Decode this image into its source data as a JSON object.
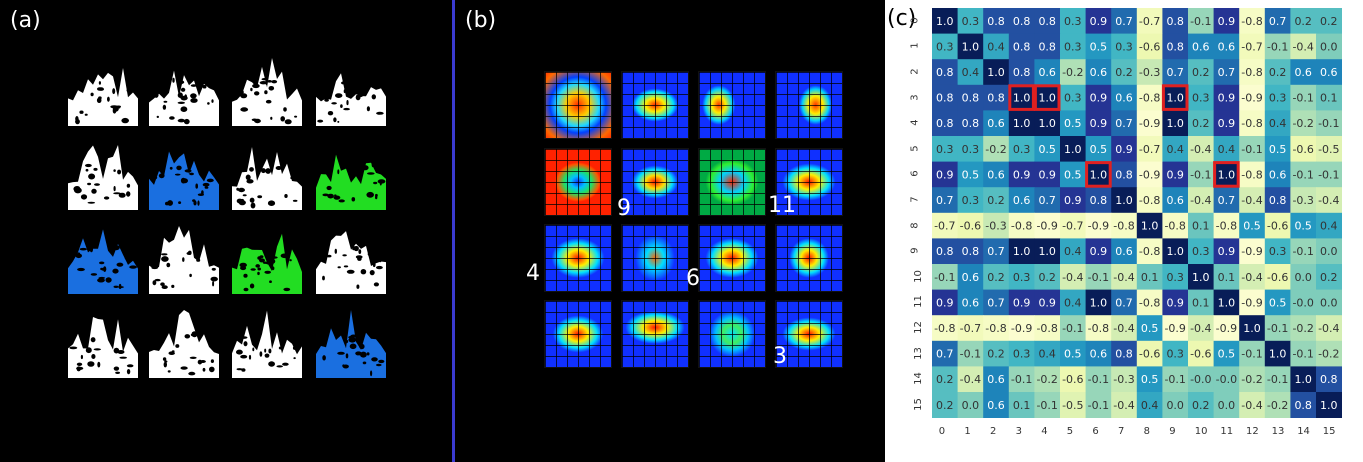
{
  "panels": {
    "a": {
      "label": "(a)"
    },
    "b": {
      "label": "(b)"
    },
    "c": {
      "label": "(c)"
    }
  },
  "feature_map_numbers": [
    {
      "text": "9"
    },
    {
      "text": "11"
    },
    {
      "text": "4"
    },
    {
      "text": "6"
    },
    {
      "text": "3"
    }
  ],
  "silhouette_colors": [
    [
      "#ffffff",
      "#ffffff",
      "#ffffff",
      "#ffffff"
    ],
    [
      "#ffffff",
      "#1a6fe0",
      "#ffffff",
      "#22dd22"
    ],
    [
      "#1a6fe0",
      "#ffffff",
      "#22dd22",
      "#ffffff"
    ],
    [
      "#ffffff",
      "#ffffff",
      "#ffffff",
      "#1a6fe0"
    ]
  ],
  "chart_data": {
    "type": "heatmap",
    "x_ticks": [
      "0",
      "1",
      "2",
      "3",
      "4",
      "5",
      "6",
      "7",
      "8",
      "9",
      "10",
      "11",
      "12",
      "13",
      "14",
      "15"
    ],
    "y_ticks": [
      "0",
      "1",
      "2",
      "3",
      "4",
      "5",
      "6",
      "7",
      "8",
      "9",
      "10",
      "11",
      "12",
      "13",
      "14",
      "15"
    ],
    "values": [
      [
        "1.0",
        "0.3",
        "0.8",
        "0.8",
        "0.8",
        "0.3",
        "0.9",
        "0.7",
        "-0.7",
        "0.8",
        "-0.1",
        "0.9",
        "-0.8",
        "0.7",
        "0.2",
        "0.2"
      ],
      [
        "0.3",
        "1.0",
        "0.4",
        "0.8",
        "0.8",
        "0.3",
        "0.5",
        "0.3",
        "-0.6",
        "0.8",
        "0.6",
        "0.6",
        "-0.7",
        "-0.1",
        "-0.4",
        "0.0"
      ],
      [
        "0.8",
        "0.4",
        "1.0",
        "0.8",
        "0.6",
        "-0.2",
        "0.6",
        "0.2",
        "-0.3",
        "0.7",
        "0.2",
        "0.7",
        "-0.8",
        "0.2",
        "0.6",
        "0.6"
      ],
      [
        "0.8",
        "0.8",
        "0.8",
        "1.0",
        "1.0",
        "0.3",
        "0.9",
        "0.6",
        "-0.8",
        "1.0",
        "0.3",
        "0.9",
        "-0.9",
        "0.3",
        "-0.1",
        "0.1"
      ],
      [
        "0.8",
        "0.8",
        "0.6",
        "1.0",
        "1.0",
        "0.5",
        "0.9",
        "0.7",
        "-0.9",
        "1.0",
        "0.2",
        "0.9",
        "-0.8",
        "0.4",
        "-0.2",
        "-0.1"
      ],
      [
        "0.3",
        "0.3",
        "-0.2",
        "0.3",
        "0.5",
        "1.0",
        "0.5",
        "0.9",
        "-0.7",
        "0.4",
        "-0.4",
        "0.4",
        "-0.1",
        "0.5",
        "-0.6",
        "-0.5"
      ],
      [
        "0.9",
        "0.5",
        "0.6",
        "0.9",
        "0.9",
        "0.5",
        "1.0",
        "0.8",
        "-0.9",
        "0.9",
        "-0.1",
        "1.0",
        "-0.8",
        "0.6",
        "-0.1",
        "-0.1"
      ],
      [
        "0.7",
        "0.3",
        "0.2",
        "0.6",
        "0.7",
        "0.9",
        "0.8",
        "1.0",
        "-0.8",
        "0.6",
        "-0.4",
        "0.7",
        "-0.4",
        "0.8",
        "-0.3",
        "-0.4"
      ],
      [
        "-0.7",
        "-0.6",
        "-0.3",
        "-0.8",
        "-0.9",
        "-0.7",
        "-0.9",
        "-0.8",
        "1.0",
        "-0.8",
        "0.1",
        "-0.8",
        "0.5",
        "-0.6",
        "0.5",
        "0.4"
      ],
      [
        "0.8",
        "0.8",
        "0.7",
        "1.0",
        "1.0",
        "0.4",
        "0.9",
        "0.6",
        "-0.8",
        "1.0",
        "0.3",
        "0.9",
        "-0.9",
        "0.3",
        "-0.1",
        "0.0"
      ],
      [
        "-0.1",
        "0.6",
        "0.2",
        "0.3",
        "0.2",
        "-0.4",
        "-0.1",
        "-0.4",
        "0.1",
        "0.3",
        "1.0",
        "0.1",
        "-0.4",
        "-0.6",
        "0.0",
        "0.2"
      ],
      [
        "0.9",
        "0.6",
        "0.7",
        "0.9",
        "0.9",
        "0.4",
        "1.0",
        "0.7",
        "-0.8",
        "0.9",
        "0.1",
        "1.0",
        "-0.9",
        "0.5",
        "-0.0",
        "0.0"
      ],
      [
        "-0.8",
        "-0.7",
        "-0.8",
        "-0.9",
        "-0.8",
        "-0.1",
        "-0.8",
        "-0.4",
        "0.5",
        "-0.9",
        "-0.4",
        "-0.9",
        "1.0",
        "-0.1",
        "-0.2",
        "-0.4"
      ],
      [
        "0.7",
        "-0.1",
        "0.2",
        "0.3",
        "0.4",
        "0.5",
        "0.6",
        "0.8",
        "-0.6",
        "0.3",
        "-0.6",
        "0.5",
        "-0.1",
        "1.0",
        "-0.1",
        "-0.2"
      ],
      [
        "0.2",
        "-0.4",
        "0.6",
        "-0.1",
        "-0.2",
        "-0.6",
        "-0.1",
        "-0.3",
        "0.5",
        "-0.1",
        "-0.0",
        "-0.0",
        "-0.2",
        "-0.1",
        "1.0",
        "0.8"
      ],
      [
        "0.2",
        "0.0",
        "0.6",
        "0.1",
        "-0.1",
        "-0.5",
        "-0.1",
        "-0.4",
        "0.4",
        "0.0",
        "0.2",
        "0.0",
        "-0.4",
        "-0.2",
        "0.8",
        "1.0"
      ]
    ],
    "highlighted_cells": [
      {
        "row": 3,
        "col": 3
      },
      {
        "row": 3,
        "col": 4
      },
      {
        "row": 3,
        "col": 9
      },
      {
        "row": 6,
        "col": 6
      },
      {
        "row": 6,
        "col": 11
      }
    ],
    "colormap": "YlGnBu",
    "highlight_color": "#e02020"
  }
}
